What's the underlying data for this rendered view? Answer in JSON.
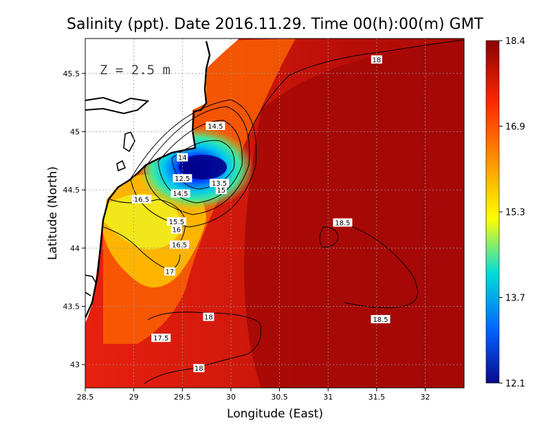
{
  "chart_data": {
    "type": "heatmap",
    "title": "Salinity (ppt). Date 2016.11.29. Time 00(h):00(m) GMT",
    "xlabel": "Longitude (East)",
    "ylabel": "Latitude (North)",
    "annotation": "Z = 2.5 m",
    "xlim": [
      28.5,
      32.4
    ],
    "ylim": [
      42.8,
      45.8
    ],
    "x_ticks": [
      "28.5",
      "29",
      "29.5",
      "30",
      "30.5",
      "31",
      "31.5",
      "32"
    ],
    "y_ticks": [
      "43",
      "43.5",
      "44",
      "44.5",
      "45",
      "45.5"
    ],
    "grid": true,
    "colorbar": {
      "min": 12.1,
      "max": 18.4,
      "tick_labels": [
        "18.4",
        "16.9",
        "15.3",
        "13.7",
        "12.1"
      ],
      "colors": [
        "#0a0a8c",
        "#0060ff",
        "#00dcdc",
        "#ffff00",
        "#ff8c00",
        "#ff2800",
        "#8b0000"
      ]
    },
    "contour_labels": [
      {
        "text": "18",
        "lon": 31.5,
        "lat": 45.62
      },
      {
        "text": "14.5",
        "lon": 29.84,
        "lat": 45.05
      },
      {
        "text": "14",
        "lon": 29.5,
        "lat": 44.78
      },
      {
        "text": "12.5",
        "lon": 29.5,
        "lat": 44.6
      },
      {
        "text": "13.5",
        "lon": 29.88,
        "lat": 44.56
      },
      {
        "text": "15",
        "lon": 29.9,
        "lat": 44.5
      },
      {
        "text": "16.5",
        "lon": 29.08,
        "lat": 44.42
      },
      {
        "text": "14.5",
        "lon": 29.48,
        "lat": 44.47
      },
      {
        "text": "15.5",
        "lon": 29.44,
        "lat": 44.23
      },
      {
        "text": "16",
        "lon": 29.44,
        "lat": 44.16
      },
      {
        "text": "16.5",
        "lon": 29.47,
        "lat": 44.03
      },
      {
        "text": "17",
        "lon": 29.37,
        "lat": 43.8
      },
      {
        "text": "18.5",
        "lon": 31.15,
        "lat": 44.22
      },
      {
        "text": "18",
        "lon": 29.77,
        "lat": 43.41
      },
      {
        "text": "18.5",
        "lon": 31.54,
        "lat": 43.39
      },
      {
        "text": "17.5",
        "lon": 29.28,
        "lat": 43.23
      },
      {
        "text": "18",
        "lon": 29.67,
        "lat": 42.97
      }
    ]
  }
}
